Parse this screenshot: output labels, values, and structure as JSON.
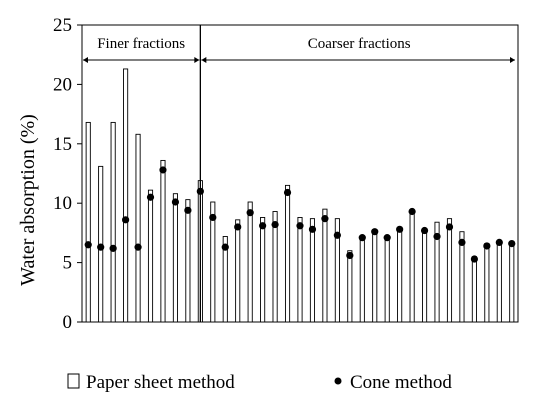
{
  "chart_data": {
    "type": "bar",
    "title": "",
    "ylabel": "Water absorption (%)",
    "xlabel": "",
    "ylim": [
      0,
      25
    ],
    "yticks": [
      0,
      5,
      10,
      15,
      20,
      25
    ],
    "grid": false,
    "legend_placement": "bottom",
    "regions": [
      {
        "label": "Finer fractions",
        "start_index": 0,
        "end_index": 9
      },
      {
        "label": "Coarser fractions",
        "start_index": 10,
        "end_index": 35
      }
    ],
    "series": [
      {
        "name": "Paper sheet method",
        "mark": "bar",
        "values": [
          16.8,
          13.1,
          16.8,
          21.3,
          15.8,
          11.1,
          13.6,
          10.8,
          10.3,
          11.9,
          10.1,
          7.2,
          8.6,
          10.1,
          8.8,
          9.3,
          11.5,
          8.8,
          8.7,
          9.5,
          8.7,
          6.0,
          7.1,
          7.4,
          7.0,
          7.9,
          9.3,
          7.6,
          8.4,
          8.7,
          7.6,
          5.5,
          6.6,
          6.8,
          6.7
        ]
      },
      {
        "name": "Cone method",
        "mark": "dot",
        "values": [
          6.5,
          6.3,
          6.2,
          8.6,
          6.3,
          10.5,
          12.8,
          10.1,
          9.4,
          11.0,
          8.8,
          6.3,
          8.0,
          9.2,
          8.1,
          8.2,
          10.9,
          8.1,
          7.8,
          8.7,
          7.3,
          5.6,
          7.1,
          7.6,
          7.1,
          7.8,
          9.3,
          7.7,
          7.2,
          8.0,
          6.7,
          5.3,
          6.4,
          6.7,
          6.6
        ]
      }
    ]
  },
  "legend": {
    "paper_label": "Paper sheet method",
    "cone_label": "Cone method"
  }
}
